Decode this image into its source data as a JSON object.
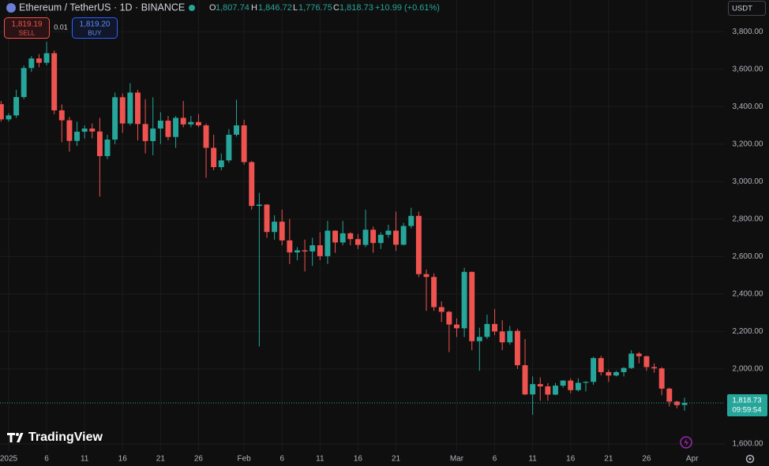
{
  "ui": {
    "symbol": "Ethereum / TetherUS · 1D · BINANCE",
    "ohlc": [
      {
        "key": "O",
        "value": "1,807.74"
      },
      {
        "key": "H",
        "value": "1,846.72"
      },
      {
        "key": "L",
        "value": "1,776.75"
      },
      {
        "key": "C",
        "value": "1,818.73"
      }
    ],
    "change": "+10.99 (+0.61%)",
    "sell": {
      "price": "1,819.19",
      "label": "SELL"
    },
    "spread": "0.01",
    "buy": {
      "price": "1,819.20",
      "label": "BUY"
    },
    "currency": "USDT",
    "last_price_label": "1,818.73",
    "countdown": "09:59:54",
    "brand": "TradingView"
  },
  "chart_data": {
    "type": "candlestick",
    "up_color": "#26a69a",
    "down_color": "#ef5350",
    "grid": true,
    "x": [
      -1,
      0,
      1,
      2,
      3,
      4,
      5,
      6,
      7,
      8,
      9,
      10,
      11,
      12,
      13,
      14,
      15,
      16,
      17,
      18,
      19,
      20,
      21,
      22,
      23,
      24,
      25,
      26,
      27,
      28,
      29,
      30,
      31,
      32,
      33,
      34,
      35,
      36,
      37,
      38,
      39,
      40,
      41,
      42,
      43,
      44,
      45,
      46,
      47,
      48,
      49,
      50,
      51,
      52,
      53,
      54,
      55,
      56,
      57,
      58,
      59,
      60,
      61,
      62,
      63,
      64,
      65,
      66,
      67,
      68,
      69,
      70,
      71,
      72,
      73,
      74,
      75,
      76,
      77,
      78,
      79,
      80,
      81,
      82,
      83,
      84,
      85,
      86,
      87,
      88,
      89
    ],
    "open": [
      3413,
      3332,
      3353,
      3451,
      3606,
      3657,
      3634,
      3685,
      3380,
      3327,
      3217,
      3266,
      3283,
      3267,
      3136,
      3224,
      3450,
      3310,
      3475,
      3307,
      3216,
      3283,
      3325,
      3238,
      3340,
      3305,
      3318,
      3300,
      3180,
      3077,
      3113,
      3250,
      3300,
      3104,
      2870,
      2877,
      2731,
      2786,
      2686,
      2622,
      2633,
      2627,
      2660,
      2602,
      2738,
      2675,
      2724,
      2693,
      2662,
      2743,
      2672,
      2716,
      2738,
      2663,
      2763,
      2817,
      2506,
      2491,
      2330,
      2305,
      2237,
      2217,
      2518,
      2148,
      2171,
      2240,
      2200,
      2142,
      2203,
      2020,
      1864,
      1919,
      1907,
      1863,
      1911,
      1938,
      1887,
      1926,
      1931,
      2058,
      1983,
      1965,
      1983,
      2005,
      2082,
      2068,
      2010,
      2003,
      1895,
      1826,
      1807.74
    ],
    "high": [
      3430,
      3365,
      3490,
      3620,
      3670,
      3680,
      3745,
      3700,
      3412,
      3345,
      3320,
      3300,
      3310,
      3340,
      3250,
      3475,
      3470,
      3525,
      3490,
      3440,
      3450,
      3370,
      3350,
      3350,
      3430,
      3350,
      3360,
      3310,
      3250,
      3150,
      3280,
      3437,
      3330,
      3110,
      2940,
      2880,
      2820,
      2850,
      2800,
      2650,
      2690,
      2700,
      2730,
      2790,
      2740,
      2790,
      2730,
      2720,
      2850,
      2760,
      2730,
      2770,
      2840,
      2780,
      2860,
      2840,
      2530,
      2510,
      2360,
      2310,
      2270,
      2540,
      2520,
      2220,
      2290,
      2320,
      2260,
      2230,
      2215,
      2160,
      1960,
      1955,
      1925,
      1925,
      1940,
      1950,
      1950,
      1935,
      2065,
      2070,
      1995,
      1990,
      2010,
      2100,
      2090,
      2070,
      2030,
      2010,
      1900,
      1830,
      1846.72
    ],
    "low": [
      3320,
      3320,
      3340,
      3440,
      3585,
      3610,
      3620,
      3360,
      3210,
      3160,
      3190,
      3230,
      3230,
      2920,
      3120,
      3200,
      3260,
      3300,
      3220,
      3150,
      3140,
      3200,
      3220,
      3180,
      3290,
      3290,
      3290,
      3020,
      3060,
      3060,
      3100,
      3240,
      3090,
      2850,
      2120,
      2700,
      2690,
      2660,
      2560,
      2580,
      2520,
      2550,
      2580,
      2560,
      2620,
      2660,
      2660,
      2640,
      2650,
      2620,
      2640,
      2700,
      2630,
      2660,
      2750,
      2490,
      2310,
      2310,
      2250,
      2090,
      2170,
      2170,
      2100,
      1990,
      2160,
      2180,
      2100,
      2130,
      2000,
      1860,
      1755,
      1830,
      1830,
      1860,
      1900,
      1870,
      1880,
      1880,
      1915,
      1965,
      1930,
      1960,
      1960,
      2000,
      2030,
      1990,
      1980,
      1860,
      1800,
      1790,
      1776.75
    ],
    "close": [
      3332,
      3353,
      3451,
      3606,
      3657,
      3634,
      3685,
      3380,
      3327,
      3217,
      3266,
      3283,
      3267,
      3136,
      3224,
      3450,
      3310,
      3475,
      3307,
      3216,
      3283,
      3325,
      3238,
      3340,
      3305,
      3318,
      3300,
      3180,
      3077,
      3113,
      3250,
      3300,
      3104,
      2870,
      2877,
      2731,
      2786,
      2686,
      2622,
      2633,
      2627,
      2660,
      2602,
      2738,
      2675,
      2724,
      2693,
      2662,
      2743,
      2672,
      2716,
      2738,
      2663,
      2763,
      2817,
      2506,
      2491,
      2330,
      2305,
      2237,
      2217,
      2518,
      2148,
      2171,
      2240,
      2200,
      2142,
      2203,
      2020,
      1864,
      1919,
      1907,
      1863,
      1911,
      1938,
      1887,
      1926,
      1931,
      2058,
      1983,
      1965,
      1983,
      2005,
      2082,
      2068,
      2010,
      2003,
      1895,
      1826,
      1807,
      1818.73
    ],
    "xlim": [
      -1.14,
      94.3
    ],
    "xticks": [
      {
        "value": 0,
        "label": "2025"
      },
      {
        "value": 5,
        "label": "6"
      },
      {
        "value": 10,
        "label": "11"
      },
      {
        "value": 15,
        "label": "16"
      },
      {
        "value": 20,
        "label": "21"
      },
      {
        "value": 25,
        "label": "26"
      },
      {
        "value": 31,
        "label": "Feb"
      },
      {
        "value": 36,
        "label": "6"
      },
      {
        "value": 41,
        "label": "11"
      },
      {
        "value": 46,
        "label": "16"
      },
      {
        "value": 51,
        "label": "21"
      },
      {
        "value": 59,
        "label": "Mar"
      },
      {
        "value": 64,
        "label": "6"
      },
      {
        "value": 69,
        "label": "11"
      },
      {
        "value": 74,
        "label": "16"
      },
      {
        "value": 79,
        "label": "21"
      },
      {
        "value": 84,
        "label": "26"
      },
      {
        "value": 90,
        "label": "Apr"
      }
    ],
    "ylim": [
      1562,
      3969
    ],
    "yticks": [
      {
        "value": 3800,
        "label": "3,800.00"
      },
      {
        "value": 3600,
        "label": "3,600.00"
      },
      {
        "value": 3400,
        "label": "3,400.00"
      },
      {
        "value": 3200,
        "label": "3,200.00"
      },
      {
        "value": 3000,
        "label": "3,000.00"
      },
      {
        "value": 2800,
        "label": "2,800.00"
      },
      {
        "value": 2600,
        "label": "2,600.00"
      },
      {
        "value": 2400,
        "label": "2,400.00"
      },
      {
        "value": 2200,
        "label": "2,200.00"
      },
      {
        "value": 2000,
        "label": "2,000.00"
      },
      {
        "value": 1600,
        "label": "1,600.00"
      }
    ]
  }
}
